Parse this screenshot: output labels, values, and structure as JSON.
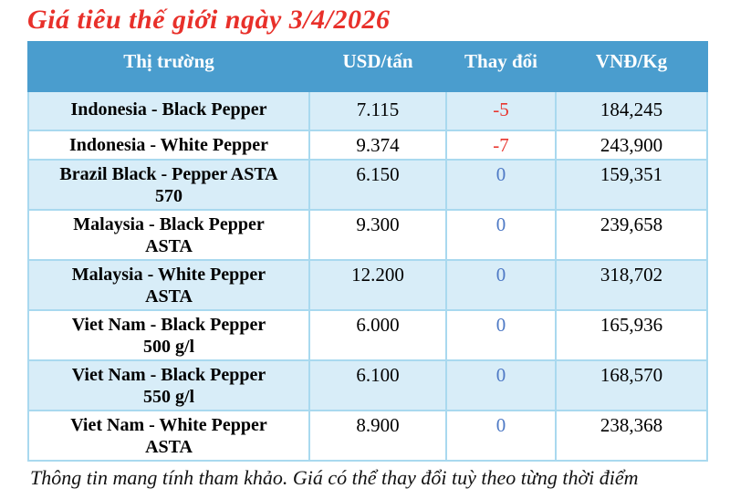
{
  "page": {
    "title": "Giá tiêu thế giới ngày 3/4/2026",
    "footnote": "Thông tin mang tính tham khảo. Giá có thể thay đổi tuỳ theo từng thời điểm"
  },
  "colors": {
    "title_red": "#e8302a",
    "header_bg": "#4a9dce",
    "header_text": "#ffffff",
    "row_alt_bg": "#d8edf8",
    "row_bg": "#ffffff",
    "cell_border": "#a9d9ef",
    "change_negative": "#e8352e",
    "change_zero": "#4f7ac5"
  },
  "table": {
    "columns": [
      {
        "key": "market",
        "label": "Thị trường"
      },
      {
        "key": "usd",
        "label": "USD/tấn"
      },
      {
        "key": "change",
        "label": "Thay đổi"
      },
      {
        "key": "vnd",
        "label": "VNĐ/Kg"
      }
    ],
    "rows": [
      {
        "market": "Indonesia - Black Pepper",
        "usd": "7.115",
        "change": "-5",
        "vnd": "184,245"
      },
      {
        "market": "Indonesia - White Pepper",
        "usd": "9.374",
        "change": "-7",
        "vnd": "243,900"
      },
      {
        "market": "Brazil Black - Pepper ASTA 570",
        "usd": "6.150",
        "change": "0",
        "vnd": "159,351"
      },
      {
        "market": "Malaysia - Black Pepper ASTA",
        "usd": "9.300",
        "change": "0",
        "vnd": "239,658"
      },
      {
        "market": "Malaysia - White Pepper ASTA",
        "usd": "12.200",
        "change": "0",
        "vnd": "318,702"
      },
      {
        "market": "Viet Nam - Black Pepper 500 g/l",
        "usd": "6.000",
        "change": "0",
        "vnd": "165,936"
      },
      {
        "market": "Viet Nam - Black Pepper 550 g/l",
        "usd": "6.100",
        "change": "0",
        "vnd": "168,570"
      },
      {
        "market": "Viet Nam - White Pepper ASTA",
        "usd": "8.900",
        "change": "0",
        "vnd": "238,368"
      }
    ]
  }
}
